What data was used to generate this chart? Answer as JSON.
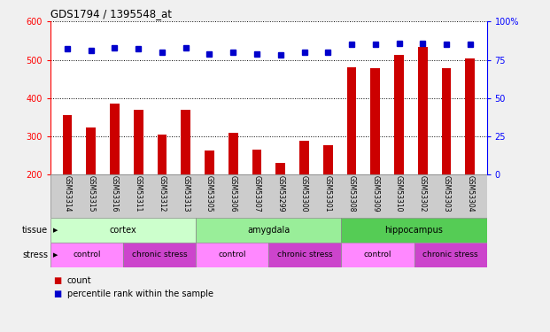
{
  "title": "GDS1794 / 1395548_at",
  "samples": [
    "GSM53314",
    "GSM53315",
    "GSM53316",
    "GSM53311",
    "GSM53312",
    "GSM53313",
    "GSM53305",
    "GSM53306",
    "GSM53307",
    "GSM53299",
    "GSM53300",
    "GSM53301",
    "GSM53308",
    "GSM53309",
    "GSM53310",
    "GSM53302",
    "GSM53303",
    "GSM53304"
  ],
  "counts": [
    355,
    323,
    385,
    370,
    303,
    370,
    263,
    308,
    265,
    230,
    288,
    276,
    480,
    478,
    513,
    533,
    477,
    503
  ],
  "percentiles": [
    82,
    81,
    83,
    82,
    80,
    83,
    79,
    80,
    79,
    78,
    80,
    80,
    85,
    85,
    86,
    86,
    85,
    85
  ],
  "ylim_left": [
    200,
    600
  ],
  "ylim_right": [
    0,
    100
  ],
  "yticks_left": [
    200,
    300,
    400,
    500,
    600
  ],
  "yticks_right": [
    0,
    25,
    50,
    75,
    100
  ],
  "bar_color": "#cc0000",
  "dot_color": "#0000cc",
  "tissue_groups": [
    {
      "label": "cortex",
      "start": 0,
      "end": 5,
      "color": "#ccffcc"
    },
    {
      "label": "amygdala",
      "start": 6,
      "end": 11,
      "color": "#99ee99"
    },
    {
      "label": "hippocampus",
      "start": 12,
      "end": 17,
      "color": "#55cc55"
    }
  ],
  "stress_groups": [
    {
      "label": "control",
      "start": 0,
      "end": 2,
      "color": "#ff88ff"
    },
    {
      "label": "chronic stress",
      "start": 3,
      "end": 5,
      "color": "#cc44cc"
    },
    {
      "label": "control",
      "start": 6,
      "end": 8,
      "color": "#ff88ff"
    },
    {
      "label": "chronic stress",
      "start": 9,
      "end": 11,
      "color": "#cc44cc"
    },
    {
      "label": "control",
      "start": 12,
      "end": 14,
      "color": "#ff88ff"
    },
    {
      "label": "chronic stress",
      "start": 15,
      "end": 17,
      "color": "#cc44cc"
    }
  ],
  "label_bg_color": "#cccccc",
  "fig_bg_color": "#f0f0f0",
  "plot_bg": "#ffffff",
  "grid_color": "#000000",
  "bar_width": 0.4
}
